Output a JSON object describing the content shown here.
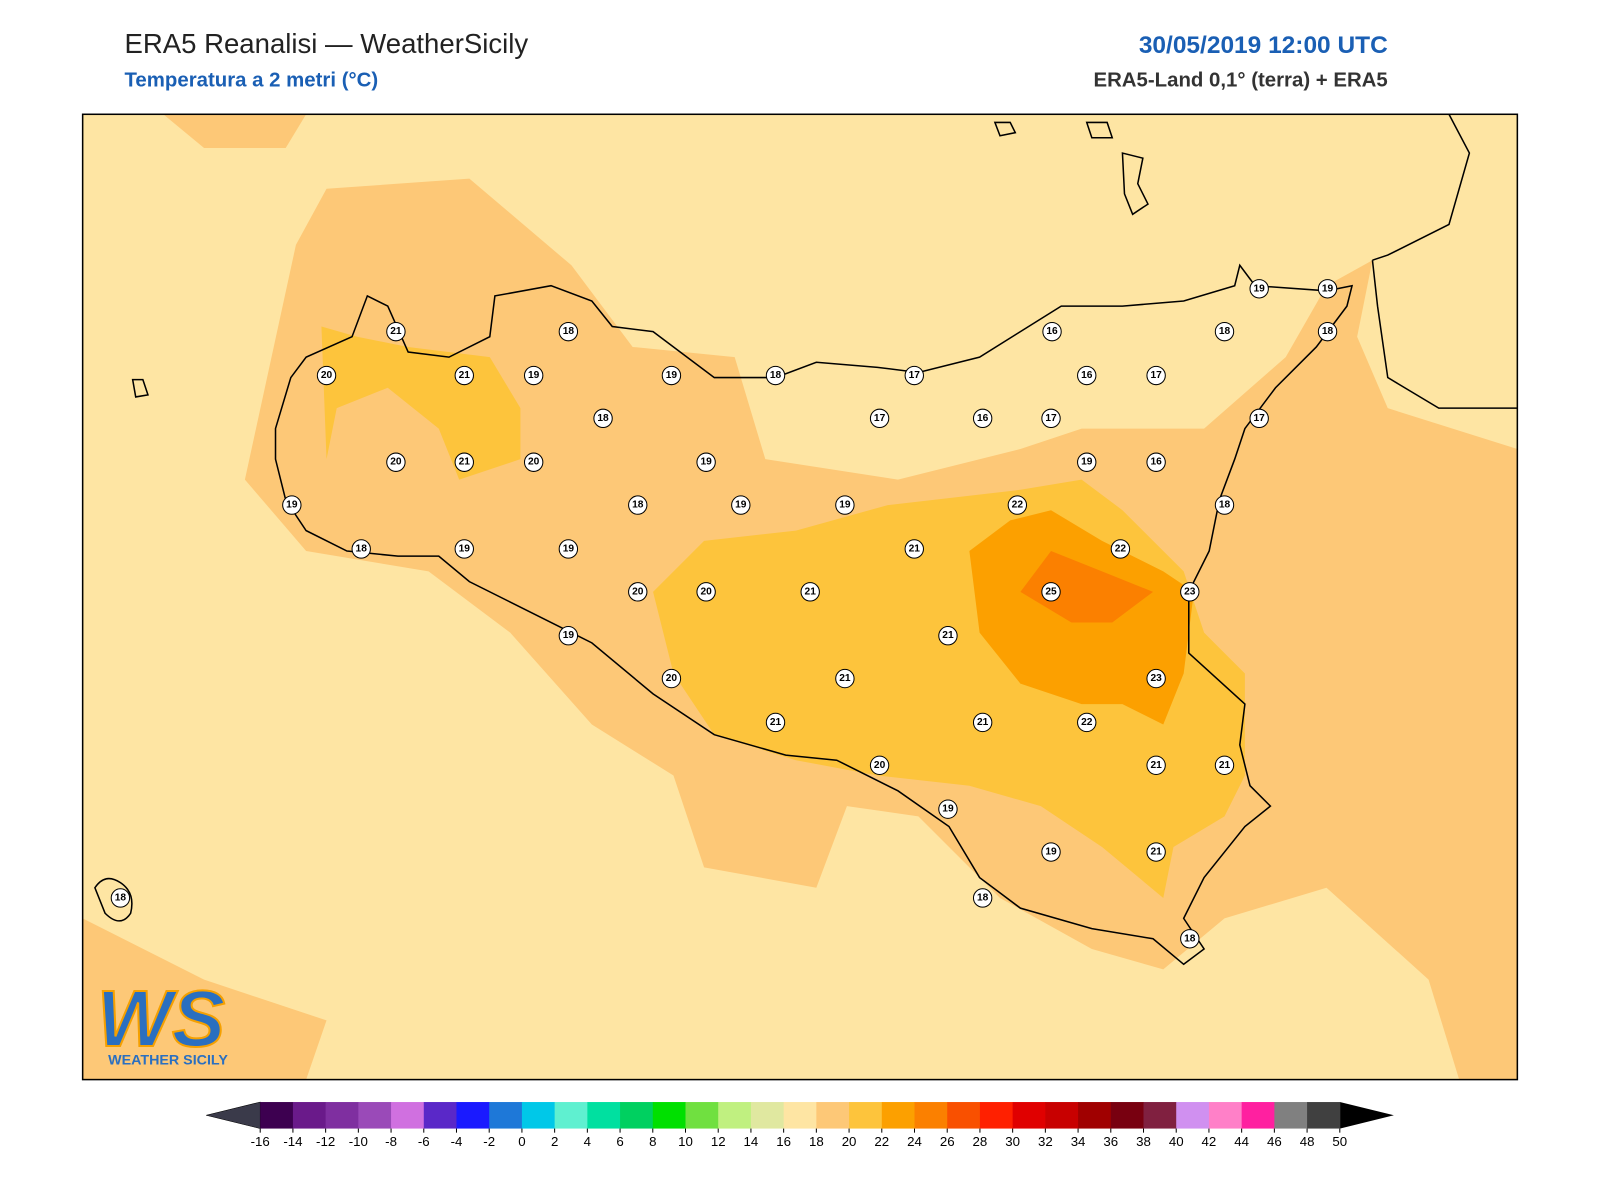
{
  "header": {
    "title": "ERA5 Reanalisi — WeatherSicily",
    "subtitle": "Temperatura a 2 metri (°C)",
    "datetime": "30/05/2019 12:00 UTC",
    "source": "ERA5-Land 0,1° (terra) + ERA5"
  },
  "map": {
    "stations": [
      21,
      18,
      20,
      21,
      19,
      19,
      18,
      17,
      18,
      17,
      16,
      17,
      16,
      17,
      16,
      18,
      19,
      19,
      18,
      17,
      20,
      21,
      20,
      19,
      19,
      16,
      19,
      18,
      19,
      19,
      22,
      18,
      18,
      19,
      19,
      21,
      22,
      20,
      20,
      21,
      25,
      23,
      19,
      21,
      20,
      21,
      23,
      21,
      21,
      22,
      20,
      21,
      21,
      19,
      19,
      21,
      18,
      18,
      18
    ]
  },
  "logo": {
    "letters": "WS",
    "name": "WEATHER SICILY"
  },
  "colorbar": {
    "ticks": [
      -16,
      -14,
      -12,
      -10,
      -8,
      -6,
      -4,
      -2,
      0,
      2,
      4,
      6,
      8,
      10,
      12,
      14,
      16,
      18,
      20,
      22,
      24,
      26,
      28,
      30,
      32,
      34,
      36,
      38,
      40,
      42,
      44,
      46,
      48,
      50
    ],
    "colors": [
      "#3d0050",
      "#6a1a8a",
      "#7f2fa0",
      "#9a4ab8",
      "#d070e0",
      "#5a28c8",
      "#1a1aff",
      "#1e78d8",
      "#00c8e8",
      "#5ff0d0",
      "#00e0a0",
      "#00d060",
      "#00e000",
      "#70e040",
      "#c0f080",
      "#e0e8a0",
      "#fee5a3",
      "#fdc877",
      "#fdc43c",
      "#fca000",
      "#fb8000",
      "#f95000",
      "#ff2000",
      "#e00000",
      "#c80000",
      "#a00000",
      "#780010",
      "#802040",
      "#d090f0",
      "#ff80c8",
      "#ff20a0",
      "#808080",
      "#404040"
    ],
    "under": "#3a3a4a",
    "over": "#000000"
  }
}
